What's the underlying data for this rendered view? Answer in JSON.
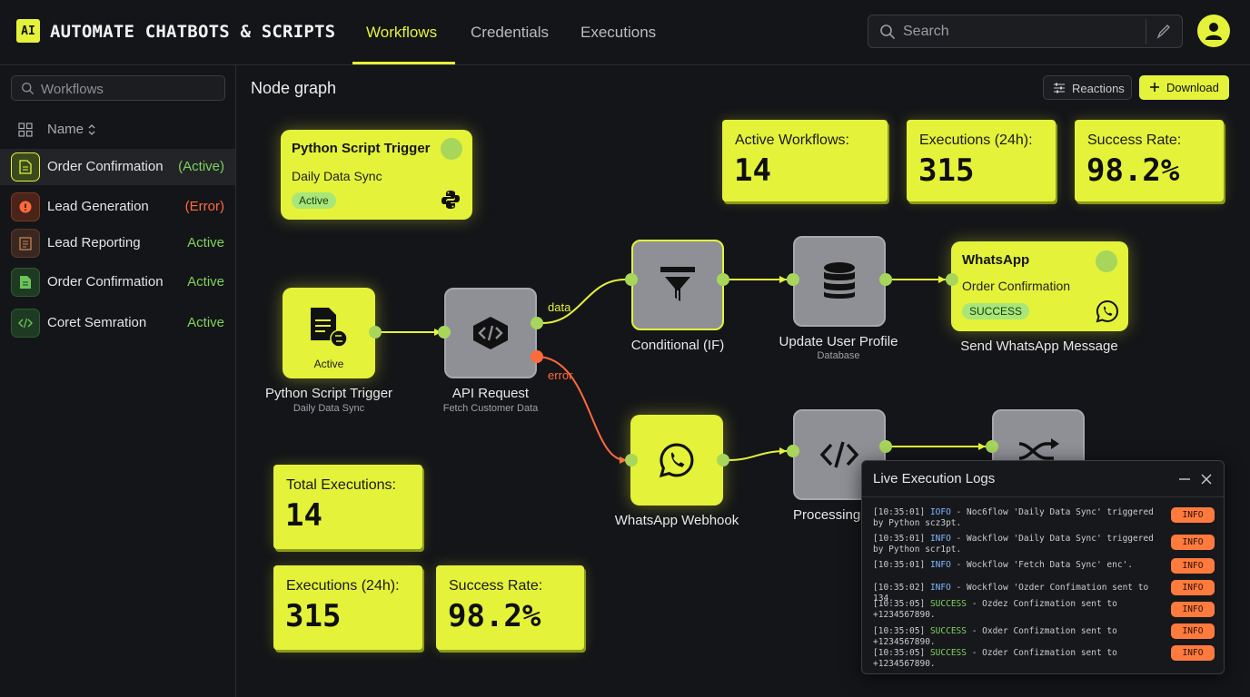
{
  "header": {
    "logo": "AI",
    "title": "AUTOMATE CHATBOTS & SCRIPTS",
    "tabs": [
      {
        "label": "Workflows"
      },
      {
        "label": "Credentials"
      },
      {
        "label": "Executions"
      }
    ],
    "search_placeholder": "Search"
  },
  "sidebar": {
    "search_placeholder": "Workflows",
    "column_header": "Name",
    "items": [
      {
        "label": "Order Confirmation",
        "status": "(Active)",
        "status_color": "#7fd35a",
        "icon": "document-icon",
        "icon_bg": "#3a4a1c"
      },
      {
        "label": "Lead Generation",
        "status": "(Error)",
        "status_color": "#ff6a3d",
        "icon": "error-icon",
        "icon_bg": "#4a2418"
      },
      {
        "label": "Lead Reporting",
        "status": "Active",
        "status_color": "#7fd35a",
        "icon": "report-icon",
        "icon_bg": "#3a2820"
      },
      {
        "label": "Order Confirmation",
        "status": "Active",
        "status_color": "#7fd35a",
        "icon": "document-icon",
        "icon_bg": "#1f3a22"
      },
      {
        "label": "Coret Semration",
        "status": "Active",
        "status_color": "#7fd35a",
        "icon": "code-icon",
        "icon_bg": "#1f3a22"
      }
    ]
  },
  "main": {
    "title": "Node graph",
    "reactions_label": "Reactions",
    "download_label": "Download"
  },
  "stats_top": [
    {
      "label": "Active Workflows:",
      "value": "14"
    },
    {
      "label": "Executions (24h):",
      "value": "315"
    },
    {
      "label": "Success Rate:",
      "value": "98.2%"
    }
  ],
  "stats_bottom": [
    {
      "label": "Total Executions:",
      "value": "14"
    },
    {
      "label": "Executions (24h):",
      "value": "315"
    },
    {
      "label": "Success Rate:",
      "value": "98.2%"
    }
  ],
  "trigger_card": {
    "title": "Python Script Trigger",
    "subtitle": "Daily Data Sync",
    "status": "Active"
  },
  "whatsapp_card": {
    "title": "WhatsApp",
    "subtitle": "Order Confirmation",
    "status": "SUCCESS"
  },
  "nodes": {
    "trigger": {
      "badge": "Active",
      "label": "Python Script Trigger",
      "sub": "Daily Data Sync"
    },
    "api": {
      "label": "API Request",
      "sub": "Fetch Customer Data"
    },
    "conditional": {
      "label": "Conditional (IF)"
    },
    "update": {
      "label": "Update User Profile",
      "sub": "Database"
    },
    "send_whatsapp": {
      "label": "Send WhatsApp Message"
    },
    "webhook": {
      "label": "WhatsApp Webhook"
    },
    "processing": {
      "label": "Processing"
    }
  },
  "edges": {
    "data_label": "data",
    "error_label": "error"
  },
  "logs": {
    "title": "Live Execution Logs",
    "rows": [
      {
        "time": "[10:35:01]",
        "level": "IOFO",
        "level_color": "#7fb8ff",
        "msg": " - Noc6flow 'Daily Data Sync' triggered by Python scz3pt.",
        "badge": "INFO"
      },
      {
        "time": "[10:35:01]",
        "level": "INFO",
        "level_color": "#7fb8ff",
        "msg": " - Wackflow 'Daily Data Sync' triggered by Python scr1pt.",
        "badge": "INFO"
      },
      {
        "time": "[10:35:01]",
        "level": "INFO",
        "level_color": "#7fb8ff",
        "msg": " - Wockflow 'Fetch Data Sync' enc'.",
        "badge": "INFO"
      },
      {
        "time": "[10:35:02]",
        "level": "INFO",
        "level_color": "#7fb8ff",
        "msg": " - Wockflow 'Ozder Confimation sent to 134.",
        "badge": "INFO"
      },
      {
        "time": "[10:35:05]",
        "level": "SUCCESS",
        "level_color": "#7fd35a",
        "msg": " - Ozdez Confizmation sent to +1234567890.",
        "badge": "INFO"
      },
      {
        "time": "[10:35:05]",
        "level": "SUCCESS",
        "level_color": "#7fd35a",
        "msg": " - Oxder Confizmation sent to +1234567890.",
        "badge": "INFO"
      },
      {
        "time": "[10:35:05]",
        "level": "SUCCESS",
        "level_color": "#7fd35a",
        "msg": " - Ozder Confizmation sent to +1234567890.",
        "badge": "INFO"
      }
    ]
  },
  "colors": {
    "accent": "#e4f23a",
    "background": "#141518",
    "success": "#7fd35a",
    "error": "#ff6a3d"
  }
}
